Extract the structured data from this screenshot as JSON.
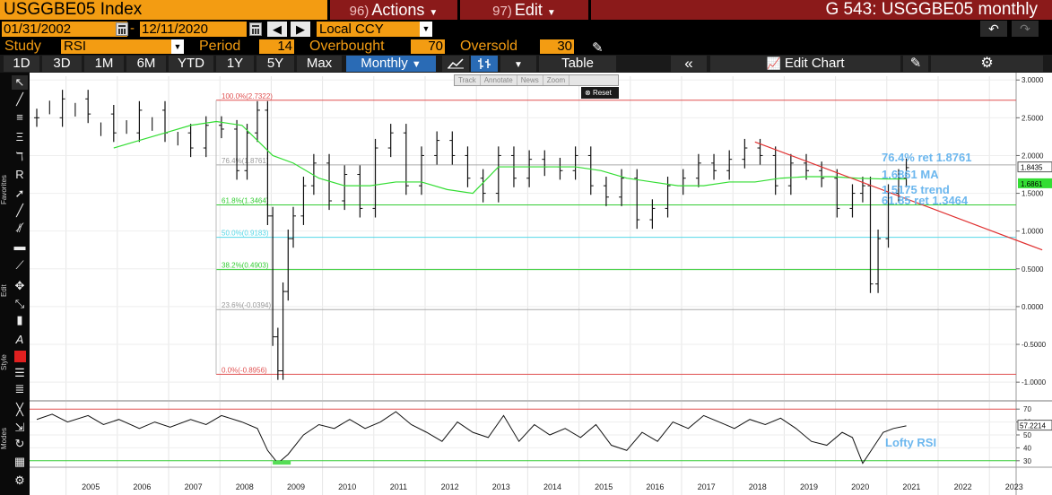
{
  "header": {
    "ticker": "USGGBE05 Index",
    "actions": {
      "num": "96)",
      "label": "Actions"
    },
    "edit": {
      "num": "97)",
      "label": "Edit"
    },
    "title": "G 543: USGGBE05 monthly"
  },
  "dates": {
    "start": "01/31/2002",
    "separator": "-",
    "end": "12/11/2020",
    "currency": "Local CCY"
  },
  "study": {
    "label": "Study",
    "value": "RSI",
    "period_label": "Period",
    "period": "14",
    "overbought_label": "Overbought",
    "overbought": "70",
    "oversold_label": "Oversold",
    "oversold": "30"
  },
  "tabs": [
    "1D",
    "3D",
    "1M",
    "6M",
    "YTD",
    "1Y",
    "5Y",
    "Max"
  ],
  "frequency": "Monthly",
  "table_label": "Table",
  "edit_chart_label": "Edit Chart",
  "toolbar_labels": {
    "favorites": "Favorites",
    "edit": "Edit",
    "style": "Style",
    "modes": "Modes"
  },
  "mini_toolbar": [
    "Track",
    "Annotate",
    "News",
    "Zoom"
  ],
  "reset_label": "Reset",
  "colors": {
    "orange": "#f39c12",
    "maroon": "#8b1a1a",
    "selected_tab": "#2a6bb5",
    "annotation": "#6cb7ee",
    "fib_red": "#e05050",
    "fib_green": "#33cc33",
    "ma_green": "#33dd33",
    "trend_red": "#e03030"
  },
  "chart_data": {
    "type": "line",
    "x_ticks": [
      "2005",
      "2006",
      "2007",
      "2008",
      "2009",
      "2010",
      "2011",
      "2012",
      "2013",
      "2014",
      "2015",
      "2016",
      "2017",
      "2018",
      "2019",
      "2020",
      "2021",
      "2022",
      "2023"
    ],
    "y_ticks": [
      "3.0000",
      "2.5000",
      "2.0000",
      "1.5000",
      "1.0000",
      "0.5000",
      "0.0000",
      "-0.5000",
      "-1.0000"
    ],
    "ylim": [
      -1.2,
      3.05
    ],
    "price_series": {
      "name": "USGGBE05",
      "x": [
        2004.0,
        2004.5,
        2005.0,
        2005.5,
        2006.0,
        2006.5,
        2007.0,
        2007.3,
        2007.6,
        2007.9,
        2008.1,
        2008.3,
        2008.5,
        2008.6,
        2008.7,
        2008.8,
        2008.9,
        2009.0,
        2009.2,
        2009.4,
        2009.7,
        2010.0,
        2010.3,
        2010.6,
        2010.9,
        2011.2,
        2011.5,
        2011.8,
        2012.1,
        2012.4,
        2012.7,
        2013.0,
        2013.3,
        2013.6,
        2013.9,
        2014.2,
        2014.5,
        2014.8,
        2015.1,
        2015.4,
        2015.7,
        2016.0,
        2016.3,
        2016.6,
        2016.9,
        2017.2,
        2017.5,
        2017.8,
        2018.1,
        2018.4,
        2018.7,
        2019.0,
        2019.3,
        2019.6,
        2019.9,
        2020.1,
        2020.25,
        2020.4,
        2020.6,
        2020.8,
        2020.95
      ],
      "y": [
        2.5,
        2.75,
        2.55,
        2.3,
        2.6,
        2.3,
        2.1,
        2.4,
        2.35,
        1.8,
        2.3,
        2.6,
        1.2,
        -0.4,
        -0.85,
        0.2,
        0.9,
        1.2,
        1.6,
        1.9,
        1.4,
        1.75,
        1.3,
        2.1,
        2.3,
        1.6,
        2.0,
        2.2,
        2.0,
        1.7,
        1.5,
        2.0,
        1.7,
        1.95,
        1.85,
        1.8,
        2.0,
        1.6,
        1.45,
        1.7,
        1.15,
        1.3,
        1.6,
        1.7,
        1.9,
        1.8,
        1.95,
        2.1,
        2.0,
        1.6,
        1.9,
        1.8,
        1.7,
        1.3,
        1.5,
        1.6,
        0.3,
        0.9,
        1.5,
        1.7,
        1.84
      ]
    },
    "ma_series": {
      "name": "MA",
      "x": [
        2005.5,
        2006.0,
        2006.5,
        2007.0,
        2007.5,
        2008.0,
        2008.3,
        2008.6,
        2009.0,
        2009.5,
        2010.0,
        2010.5,
        2011.0,
        2011.5,
        2012.0,
        2012.5,
        2013.0,
        2013.5,
        2014.0,
        2014.5,
        2015.0,
        2015.5,
        2016.0,
        2016.5,
        2017.0,
        2017.5,
        2018.0,
        2018.5,
        2019.0,
        2019.5,
        2020.0,
        2020.5,
        2020.95
      ],
      "y": [
        2.1,
        2.2,
        2.3,
        2.4,
        2.45,
        2.4,
        2.2,
        2.0,
        1.9,
        1.7,
        1.6,
        1.6,
        1.65,
        1.65,
        1.55,
        1.5,
        1.85,
        1.85,
        1.85,
        1.85,
        1.8,
        1.7,
        1.65,
        1.6,
        1.6,
        1.65,
        1.65,
        1.7,
        1.72,
        1.72,
        1.7,
        1.69,
        1.69
      ]
    },
    "trendline": {
      "name": "trend",
      "x": [
        2018.0,
        2023.6
      ],
      "y": [
        2.18,
        0.75
      ]
    },
    "fib_levels": [
      {
        "label": "100.0%(2.7322)",
        "y": 2.7322
      },
      {
        "label": "76.4%(1.8761)",
        "y": 1.8761
      },
      {
        "label": "61.8%(1.3464)",
        "y": 1.3464
      },
      {
        "label": "50.0%(0.9183)",
        "y": 0.9183
      },
      {
        "label": "38.2%(0.4903)",
        "y": 0.4903
      },
      {
        "label": "23.6%(-0.0394)",
        "y": -0.0394
      },
      {
        "label": "0.0%(-0.8956)",
        "y": -0.8956
      }
    ],
    "annotations": {
      "ret764": "76.4% ret 1.8761",
      "ma": "1.6861 MA",
      "trend": "1.5175 trend",
      "ret618": "61.85 ret 1.3464",
      "rsi": "Lofty RSI"
    },
    "right_labels": {
      "last": "1.8435",
      "ma": "1.6861",
      "rsi": "57.2214"
    },
    "rsi": {
      "y_ticks": [
        "70",
        "60",
        "50",
        "40",
        "30"
      ],
      "ylim": [
        25,
        75
      ],
      "overbought": 70,
      "oversold": 30,
      "x": [
        2004.0,
        2004.3,
        2004.6,
        2005.0,
        2005.3,
        2005.6,
        2006.0,
        2006.3,
        2006.6,
        2007.0,
        2007.3,
        2007.6,
        2008.0,
        2008.3,
        2008.5,
        2008.7,
        2008.9,
        2009.2,
        2009.5,
        2009.8,
        2010.1,
        2010.4,
        2010.7,
        2011.0,
        2011.3,
        2011.6,
        2011.9,
        2012.2,
        2012.5,
        2012.8,
        2013.1,
        2013.4,
        2013.7,
        2014.0,
        2014.3,
        2014.6,
        2014.9,
        2015.2,
        2015.5,
        2015.8,
        2016.1,
        2016.4,
        2016.7,
        2017.0,
        2017.3,
        2017.6,
        2017.9,
        2018.2,
        2018.5,
        2018.8,
        2019.1,
        2019.4,
        2019.7,
        2019.9,
        2020.1,
        2020.3,
        2020.5,
        2020.7,
        2020.95
      ],
      "y": [
        62,
        66,
        60,
        65,
        58,
        62,
        55,
        60,
        56,
        62,
        58,
        65,
        60,
        55,
        38,
        28,
        35,
        50,
        58,
        55,
        62,
        55,
        60,
        68,
        58,
        52,
        45,
        60,
        52,
        48,
        65,
        45,
        58,
        50,
        55,
        48,
        58,
        42,
        38,
        52,
        45,
        60,
        55,
        65,
        60,
        55,
        62,
        58,
        63,
        55,
        45,
        42,
        52,
        48,
        28,
        40,
        52,
        55,
        57
      ]
    }
  }
}
